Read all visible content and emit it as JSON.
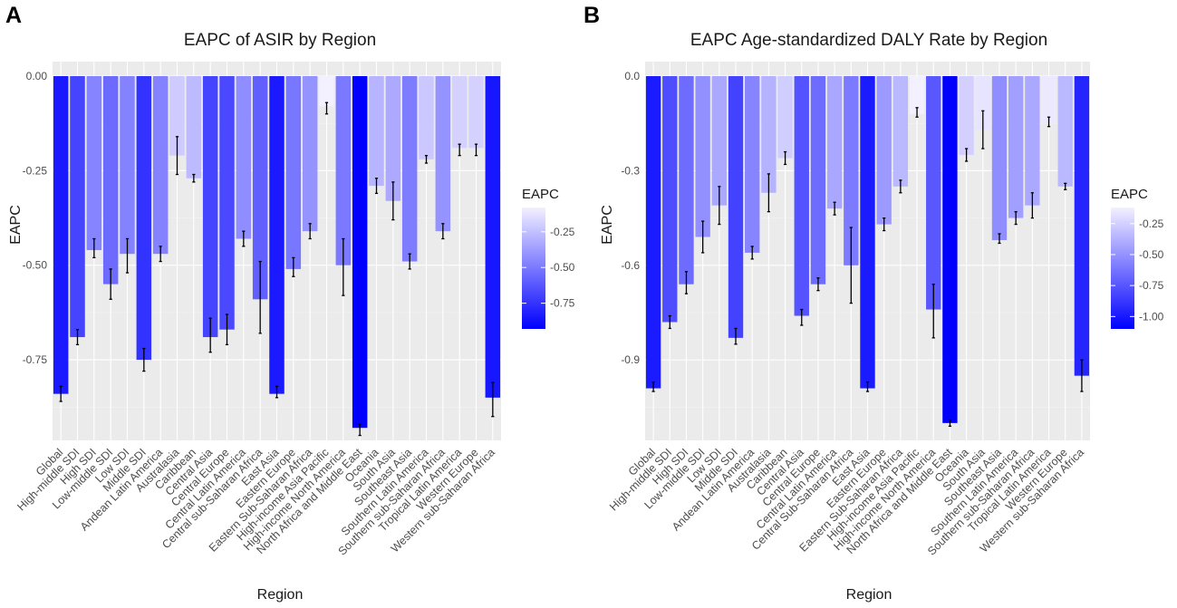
{
  "colors": {
    "low": "#0000ff",
    "high": "#f3f0ff",
    "panel_bg": "#ebebeb",
    "grid": "#ffffff"
  },
  "chart_data": [
    {
      "panel_label": "A",
      "type": "bar",
      "title": "EAPC of ASIR by Region",
      "xlabel": "Region",
      "ylabel": "EAPC",
      "ylim": [
        -0.963,
        0.0
      ],
      "y_ticks": [
        0,
        -0.25,
        -0.5,
        -0.75
      ],
      "y_tick_labels": [
        "0.00",
        "-0.25",
        "-0.50",
        "-0.75"
      ],
      "grid": true,
      "legend_title": "EAPC",
      "legend_range": [
        -0.93,
        -0.08
      ],
      "legend_ticks": [
        -0.25,
        -0.5,
        -0.75
      ],
      "legend_tick_labels": [
        "-0.25",
        "-0.50",
        "-0.75"
      ],
      "categories": [
        "Global",
        "High-middle SDI",
        "High SDI",
        "Low-middle SDI",
        "Low SDI",
        "Middle SDI",
        "Andean Latin America",
        "Australasia",
        "Caribbean",
        "Central Asia",
        "Central Europe",
        "Central Latin America",
        "Central sub-Saharan Africa",
        "East Asia",
        "Eastern Europe",
        "Eastern Sub-Saharan Africa",
        "High-income Asia Pacific",
        "High-income North America",
        "North Africa and Middle East",
        "Oceania",
        "South Asia",
        "Southeast Asia",
        "Southern Latin America",
        "Southern sub-Saharan Africa",
        "Tropical Latin America",
        "Western Europe",
        "Western sub-Saharan Africa"
      ],
      "values": [
        -0.84,
        -0.69,
        -0.46,
        -0.55,
        -0.47,
        -0.75,
        -0.47,
        -0.21,
        -0.27,
        -0.69,
        -0.67,
        -0.43,
        -0.59,
        -0.84,
        -0.51,
        -0.41,
        -0.08,
        -0.5,
        -0.93,
        -0.29,
        -0.33,
        -0.49,
        -0.22,
        -0.41,
        -0.19,
        -0.19,
        -0.85
      ],
      "error_lower": [
        -0.86,
        -0.71,
        -0.48,
        -0.59,
        -0.52,
        -0.78,
        -0.49,
        -0.26,
        -0.28,
        -0.73,
        -0.71,
        -0.45,
        -0.68,
        -0.85,
        -0.53,
        -0.43,
        -0.1,
        -0.58,
        -0.95,
        -0.31,
        -0.38,
        -0.51,
        -0.23,
        -0.43,
        -0.21,
        -0.21,
        -0.9
      ],
      "error_upper": [
        -0.82,
        -0.67,
        -0.43,
        -0.51,
        -0.43,
        -0.72,
        -0.45,
        -0.16,
        -0.26,
        -0.64,
        -0.63,
        -0.41,
        -0.49,
        -0.82,
        -0.48,
        -0.39,
        -0.07,
        -0.43,
        -0.92,
        -0.27,
        -0.28,
        -0.47,
        -0.21,
        -0.39,
        -0.18,
        -0.18,
        -0.81
      ]
    },
    {
      "panel_label": "B",
      "type": "bar",
      "title": "EAPC Age-standardized DALY Rate by Region",
      "xlabel": "Region",
      "ylabel": "EAPC",
      "ylim": [
        -1.155,
        0.0
      ],
      "y_ticks": [
        0,
        -0.3,
        -0.6,
        -0.9
      ],
      "y_tick_labels": [
        "0.0",
        "-0.3",
        "-0.6",
        "-0.9"
      ],
      "grid": true,
      "legend_title": "EAPC",
      "legend_range": [
        -1.1,
        -0.12
      ],
      "legend_ticks": [
        -0.25,
        -0.5,
        -0.75,
        -1.0
      ],
      "legend_tick_labels": [
        "-0.25",
        "-0.50",
        "-0.75",
        "-1.00"
      ],
      "categories": [
        "Global",
        "High-middle SDI",
        "High SDI",
        "Low-middle SDI",
        "Low SDI",
        "Middle SDI",
        "Andean Latin America",
        "Australasia",
        "Caribbean",
        "Central Asia",
        "Central Europe",
        "Central Latin America",
        "Central Sub-Saharan Africa",
        "East Asia",
        "Eastern Europe",
        "Eastern Sub-Saharan Africa",
        "High-income Asia Pacific",
        "High-income North America",
        "North Africa and Middle East",
        "Oceania",
        "South Asia",
        "Southeast Asia",
        "Southern Latin America",
        "Southern sub-Saharan Africa",
        "Tropical Latin America",
        "Western Europe",
        "Western sub-Saharan Africa"
      ],
      "values": [
        -0.99,
        -0.78,
        -0.66,
        -0.51,
        -0.41,
        -0.83,
        -0.56,
        -0.37,
        -0.26,
        -0.76,
        -0.66,
        -0.42,
        -0.6,
        -0.99,
        -0.47,
        -0.35,
        -0.12,
        -0.74,
        -1.1,
        -0.25,
        -0.17,
        -0.52,
        -0.45,
        -0.41,
        -0.15,
        -0.35,
        -0.95
      ],
      "error_lower": [
        -1.0,
        -0.8,
        -0.69,
        -0.56,
        -0.47,
        -0.85,
        -0.58,
        -0.43,
        -0.28,
        -0.79,
        -0.68,
        -0.44,
        -0.72,
        -1.0,
        -0.49,
        -0.37,
        -0.13,
        -0.83,
        -1.11,
        -0.27,
        -0.23,
        -0.53,
        -0.47,
        -0.45,
        -0.16,
        -0.36,
        -1.0
      ],
      "error_upper": [
        -0.97,
        -0.76,
        -0.62,
        -0.46,
        -0.35,
        -0.8,
        -0.54,
        -0.31,
        -0.24,
        -0.74,
        -0.64,
        -0.4,
        -0.48,
        -0.97,
        -0.45,
        -0.33,
        -0.1,
        -0.66,
        -1.09,
        -0.23,
        -0.11,
        -0.5,
        -0.43,
        -0.37,
        -0.13,
        -0.34,
        -0.9
      ]
    }
  ]
}
